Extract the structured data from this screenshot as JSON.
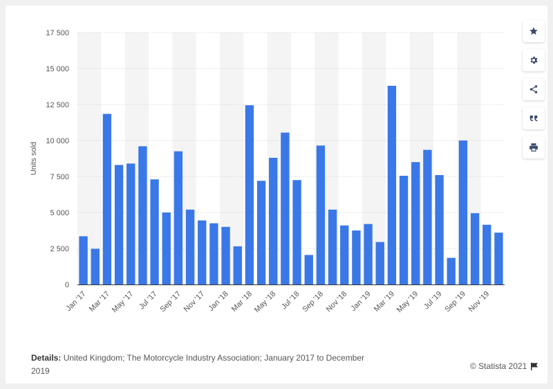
{
  "toolbar": {
    "buttons": [
      {
        "name": "favorite-button",
        "icon": "star-icon"
      },
      {
        "name": "settings-button",
        "icon": "gear-icon"
      },
      {
        "name": "share-button",
        "icon": "share-icon"
      },
      {
        "name": "cite-button",
        "icon": "quote-icon"
      },
      {
        "name": "print-button",
        "icon": "print-icon"
      }
    ]
  },
  "footer": {
    "details_label": "Details:",
    "details_text": " United Kingdom; The Motorcycle Industry Association; January 2017 to December 2019",
    "credit": "© Statista 2021",
    "credit_icon": "flag-icon"
  },
  "colors": {
    "bar": "#3a78e7",
    "band": "#f4f4f4",
    "grid": "#cccccc",
    "text": "#555555"
  },
  "chart_data": {
    "type": "bar",
    "ylabel": "Units sold",
    "ylim": [
      0,
      17500
    ],
    "yticks": [
      0,
      2500,
      5000,
      7500,
      10000,
      12500,
      15000,
      17500
    ],
    "ytick_labels": [
      "0",
      "2 500",
      "5 000",
      "7 500",
      "10 000",
      "12 500",
      "15 000",
      "17 500"
    ],
    "grid": true,
    "categories": [
      "Jan '17",
      "Feb '17",
      "Mar '17",
      "Apr '17",
      "May '17",
      "Jun '17",
      "Jul '17",
      "Aug '17",
      "Sep '17",
      "Oct '17",
      "Nov '17",
      "Dec '17",
      "Jan '18",
      "Feb '18",
      "Mar '18",
      "Apr '18",
      "May '18",
      "Jun '18",
      "Jul '18",
      "Aug '18",
      "Sep '18",
      "Oct '18",
      "Nov '18",
      "Dec '18",
      "Jan '19",
      "Feb '19",
      "Mar '19",
      "Apr '19",
      "May '19",
      "Jun '19",
      "Jul '19",
      "Aug '19",
      "Sep '19",
      "Oct '19",
      "Nov '19",
      "Dec '19"
    ],
    "xtick_labels": [
      "Jan '17",
      "Mar '17",
      "May '17",
      "Jul '17",
      "Sep '17",
      "Nov '17",
      "Jan '18",
      "Mar '18",
      "May '18",
      "Jul '18",
      "Sep '18",
      "Nov '18",
      "Jan '19",
      "Mar '19",
      "May '19",
      "Jul '19",
      "Sep '19",
      "Nov '19"
    ],
    "values": [
      3350,
      2480,
      11850,
      8300,
      8400,
      9600,
      7300,
      5000,
      9250,
      5200,
      4450,
      4250,
      4000,
      2650,
      12450,
      7200,
      8800,
      10550,
      7250,
      2050,
      9650,
      5200,
      4100,
      3750,
      4200,
      2950,
      13800,
      7550,
      8500,
      9350,
      7600,
      1850,
      10000,
      4950,
      4150,
      3600
    ]
  }
}
